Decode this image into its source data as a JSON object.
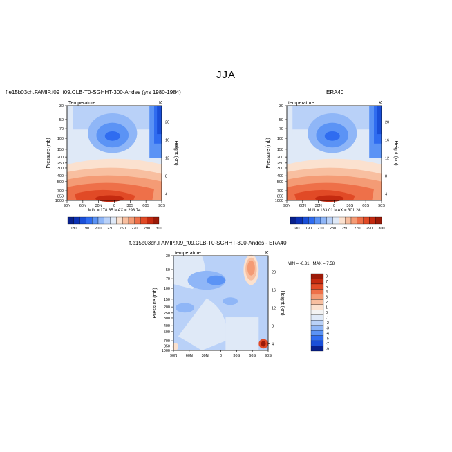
{
  "page": {
    "main_title": "JJA"
  },
  "chart_data": [
    {
      "type": "heatmap",
      "id": "panel1",
      "title": "f.e15b03ch.FAMIP.f09_f09.CLB-T0-SGHHT-300-Andes (yrs 1980-1984)",
      "subtitle_left": "Temperature",
      "subtitle_right": "K",
      "ylabel": "Pressure (mb)",
      "y2label": "Height (km)",
      "x_ticks": [
        "90N",
        "60N",
        "30N",
        "0",
        "30S",
        "60S",
        "90S"
      ],
      "y_ticks": [
        30,
        50,
        70,
        100,
        150,
        200,
        250,
        300,
        400,
        500,
        700,
        850,
        1000
      ],
      "y2_ticks": [
        20,
        16,
        12,
        8,
        4
      ],
      "ylim": [
        1000,
        30
      ],
      "stats": {
        "min_label": "MIN =",
        "min": "178.85",
        "max_label": "MAX =",
        "max": "298.74"
      },
      "legend_labels": [
        "180",
        "190",
        "210",
        "230",
        "250",
        "270",
        "290",
        "300"
      ]
    },
    {
      "type": "heatmap",
      "id": "panel2",
      "title": "ERA40",
      "subtitle_left": "temperature",
      "subtitle_right": "K",
      "ylabel": "Pressure (mb)",
      "y2label": "Height (km)",
      "x_ticks": [
        "90N",
        "60N",
        "30N",
        "0",
        "30S",
        "60S",
        "90S"
      ],
      "y_ticks": [
        30,
        50,
        70,
        100,
        150,
        200,
        250,
        300,
        400,
        500,
        700,
        850,
        1000
      ],
      "y2_ticks": [
        20,
        16,
        12,
        8,
        4
      ],
      "ylim": [
        1000,
        30
      ],
      "stats": {
        "min_label": "MIN =",
        "min": "183.01",
        "max_label": "MAX =",
        "max": "301.28"
      },
      "legend_labels": [
        "180",
        "190",
        "210",
        "230",
        "250",
        "270",
        "290",
        "300"
      ]
    },
    {
      "type": "heatmap",
      "id": "panel3",
      "title": "f.e15b03ch.FAMIP.f09_f09.CLB-T0-SGHHT-300-Andes - ERA40",
      "subtitle_left": "temperature",
      "subtitle_right": "K",
      "ylabel": "Pressure (mb)",
      "y2label": "Height (km)",
      "x_ticks": [
        "90N",
        "60N",
        "30N",
        "0",
        "30S",
        "60S",
        "90S"
      ],
      "y_ticks": [
        30,
        50,
        70,
        100,
        150,
        200,
        250,
        300,
        400,
        500,
        700,
        850,
        1000
      ],
      "y2_ticks": [
        20,
        16,
        12,
        8,
        4
      ],
      "ylim": [
        1000,
        30
      ],
      "stats": {
        "min_label": "MIN =",
        "min": "-6.31",
        "max_label": "MAX =",
        "max": "7.58"
      },
      "legend_labels": [
        "9",
        "7",
        "5",
        "4",
        "3",
        "2",
        "1",
        "0",
        "-1",
        "-2",
        "-3",
        "-4",
        "-5",
        "-7",
        "-9"
      ]
    }
  ],
  "colors": {
    "abs_scale": [
      "#08208c",
      "#0b31b5",
      "#1a4fd8",
      "#2f6cf0",
      "#5b93f5",
      "#8fb6f7",
      "#b9d1f8",
      "#dfe9f7",
      "#fbe1cf",
      "#f8bfa0",
      "#f49b75",
      "#ee7049",
      "#e14a26",
      "#c42a10",
      "#9b1a08"
    ],
    "diff_scale": [
      "#9b1a08",
      "#c42a10",
      "#e14a26",
      "#ee7049",
      "#f49b75",
      "#f8bfa0",
      "#fbe1cf",
      "#f3f3f3",
      "#dfe9f7",
      "#b9d1f8",
      "#8fb6f7",
      "#5b93f5",
      "#2f6cf0",
      "#1a4fd8",
      "#08208c"
    ]
  }
}
